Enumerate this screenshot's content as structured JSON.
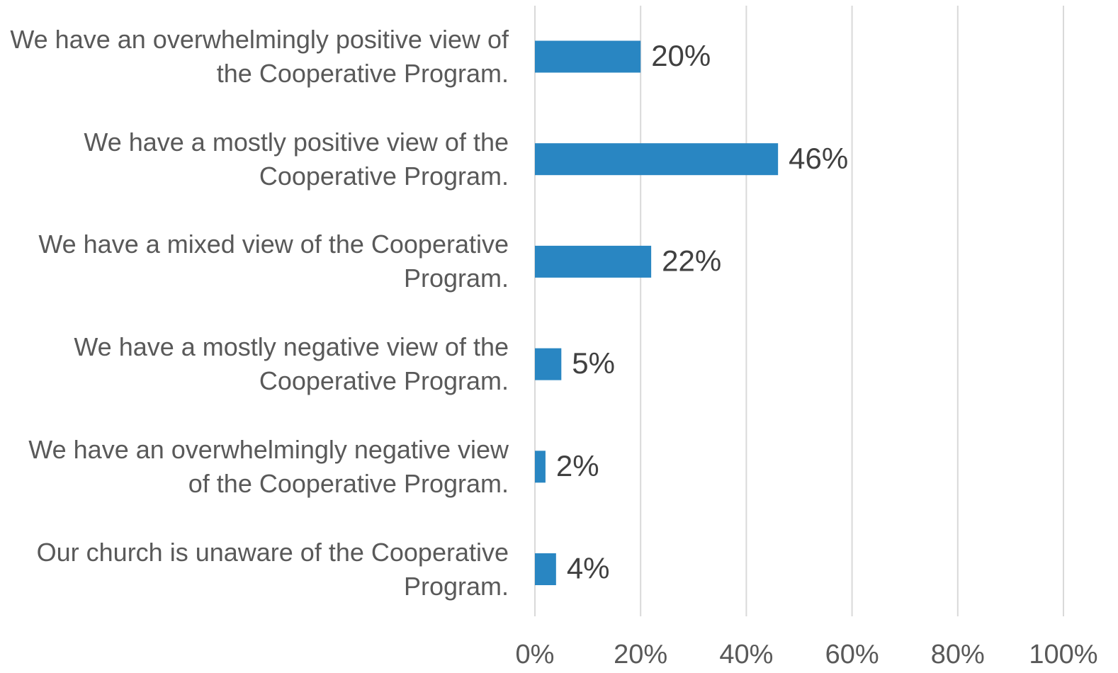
{
  "chart_data": {
    "type": "bar",
    "orientation": "horizontal",
    "categories": [
      "We have an overwhelmingly positive view of the Cooperative Program.",
      "We have a mostly positive view of the Cooperative Program.",
      "We have a mixed view of the Cooperative Program.",
      "We have a mostly negative view of the Cooperative Program.",
      "We have an overwhelmingly negative view of the Cooperative Program.",
      "Our church is unaware of the Cooperative Program."
    ],
    "values": [
      20,
      46,
      22,
      5,
      2,
      4
    ],
    "value_labels": [
      "20%",
      "46%",
      "22%",
      "5%",
      "2%",
      "4%"
    ],
    "color": "#2986c2",
    "xlim": [
      0,
      100
    ],
    "xticks": [
      {
        "value": 0,
        "label": "0%"
      },
      {
        "value": 20,
        "label": "20%"
      },
      {
        "value": 40,
        "label": "40%"
      },
      {
        "value": 60,
        "label": "60%"
      },
      {
        "value": 80,
        "label": "80%"
      },
      {
        "value": 100,
        "label": "100%"
      }
    ],
    "grid": true
  }
}
